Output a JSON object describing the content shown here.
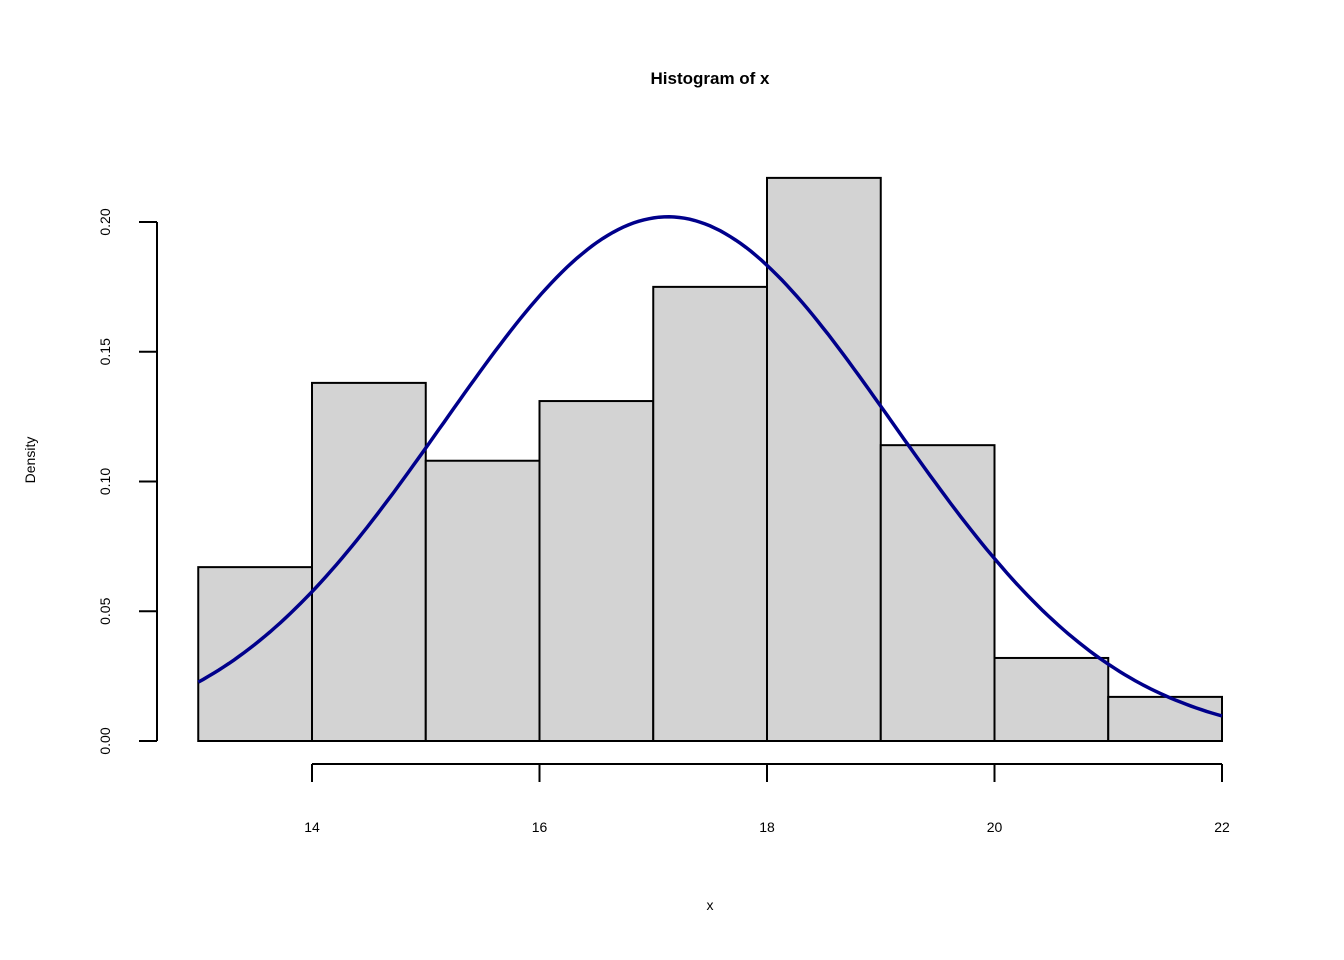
{
  "chart_data": {
    "type": "bar",
    "subtype": "histogram",
    "title": "Histogram of x",
    "xlabel": "x",
    "ylabel": "Density",
    "bin_edges": [
      13,
      14,
      15,
      16,
      17,
      18,
      19,
      20,
      21,
      22
    ],
    "values": [
      0.067,
      0.138,
      0.108,
      0.131,
      0.175,
      0.217,
      0.114,
      0.032,
      0.017
    ],
    "xlim": [
      13,
      22
    ],
    "ylim": [
      0,
      0.217
    ],
    "x_ticks": [
      14,
      16,
      18,
      20,
      22
    ],
    "x_tick_labels": [
      "14",
      "16",
      "18",
      "20",
      "22"
    ],
    "y_ticks": [
      0,
      0.05,
      0.1,
      0.15,
      0.2
    ],
    "y_tick_labels": [
      "0.00",
      "0.05",
      "0.10",
      "0.15",
      "0.20"
    ],
    "grid": false,
    "bar_color": "#d3d3d3",
    "density_curve": {
      "type": "line",
      "distribution": "normal",
      "mean": 17.13,
      "sd": 1.975,
      "color": "#00008b"
    }
  }
}
